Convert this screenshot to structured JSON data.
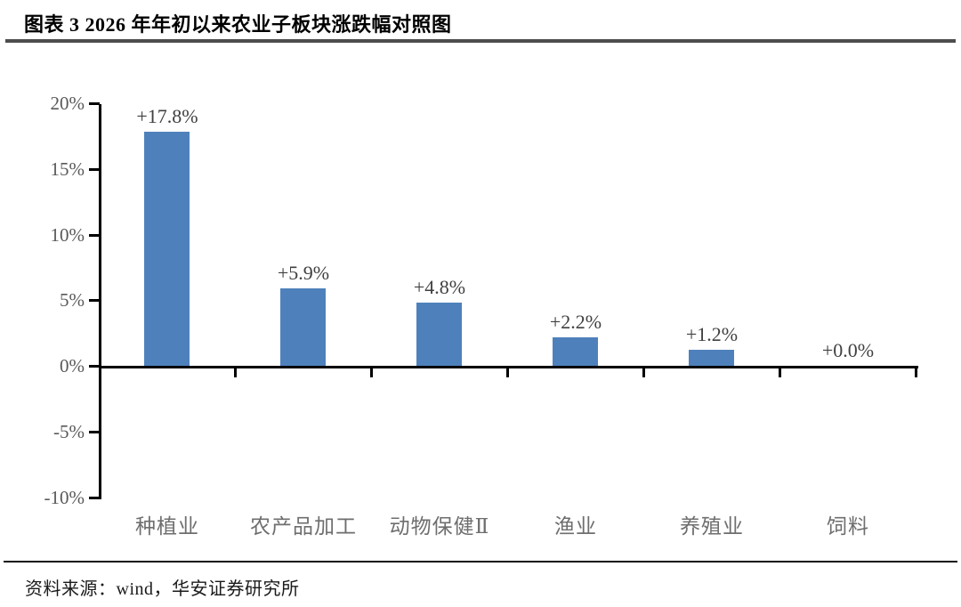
{
  "header": {
    "title": "图表 3 2026 年年初以来农业子板块涨跌幅对照图"
  },
  "chart_data": {
    "type": "bar",
    "title": "2026 年年初以来农业子板块涨跌幅对照图",
    "categories": [
      "种植业",
      "农产品加工",
      "动物保健Ⅱ",
      "渔业",
      "养殖业",
      "饲料"
    ],
    "values": [
      17.8,
      5.9,
      4.8,
      2.2,
      1.2,
      0.0
    ],
    "value_labels": [
      "+17.8%",
      "+5.9%",
      "+4.8%",
      "+2.2%",
      "+1.2%",
      "+0.0%"
    ],
    "ylim": [
      -10,
      20
    ],
    "yticks": [
      20,
      15,
      10,
      5,
      0,
      -5,
      -10
    ],
    "ytick_labels": [
      "20%",
      "15%",
      "10%",
      "5%",
      "0%",
      "-5%",
      "-10%"
    ],
    "bar_color": "#4E81BB",
    "axis_color": "#000000",
    "grid": false,
    "legend": false,
    "xlabel": "",
    "ylabel": ""
  },
  "footer": {
    "source": "资料来源：wind，华安证券研究所"
  }
}
